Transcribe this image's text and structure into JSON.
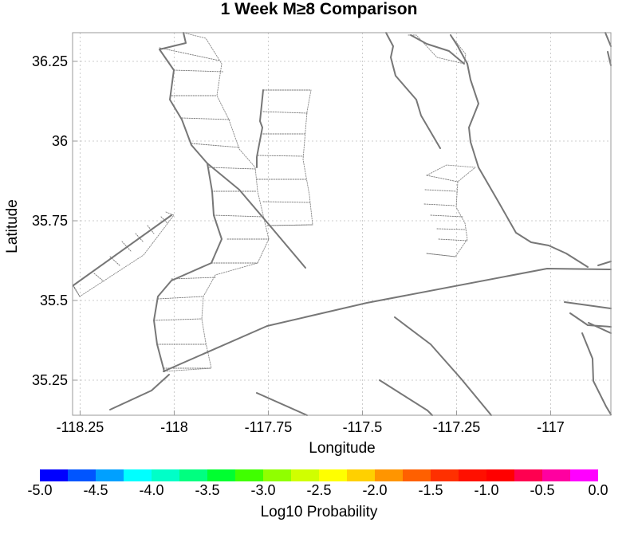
{
  "title": "1 Week M≥8 Comparison",
  "map": {
    "xlabel": "Longitude",
    "ylabel": "Latitude",
    "x_range": [
      -118.27,
      -116.84
    ],
    "y_range": [
      35.14,
      36.34
    ],
    "x_ticks": [
      -118.25,
      -118,
      -117.75,
      -117.5,
      -117.25,
      -117
    ],
    "x_tick_labels": [
      "-118.25",
      "-118",
      "-117.75",
      "-117.5",
      "-117.25",
      "-117"
    ],
    "y_ticks": [
      36.25,
      36,
      35.75,
      35.5,
      35.25
    ],
    "y_tick_labels": [
      "36.25",
      "36",
      "35.75",
      "35.5",
      "35.25"
    ],
    "fault_color": "#777777",
    "grid_color": "#cccccc"
  },
  "colorbar": {
    "label": "Log10 Probability",
    "range": [
      -5.0,
      0.0
    ],
    "tick_values": [
      -5.0,
      -4.5,
      -4.0,
      -3.5,
      -3.0,
      -2.5,
      -2.0,
      -1.5,
      -1.0,
      -0.5,
      0.0
    ],
    "tick_labels": [
      "-5.0",
      "-4.5",
      "-4.0",
      "-3.5",
      "-3.0",
      "-2.5",
      "-2.0",
      "-1.5",
      "-1.0",
      "-0.5",
      "0.0"
    ],
    "colors": [
      "#0000ff",
      "#0055ff",
      "#00a0ff",
      "#00ffff",
      "#00ffc8",
      "#00ff80",
      "#00ff30",
      "#40ff00",
      "#90ff00",
      "#d0ff00",
      "#ffff00",
      "#ffd000",
      "#ff9500",
      "#ff6000",
      "#ff3000",
      "#ff1000",
      "#ff0000",
      "#ff0050",
      "#ff00a0",
      "#ff00ff"
    ]
  }
}
